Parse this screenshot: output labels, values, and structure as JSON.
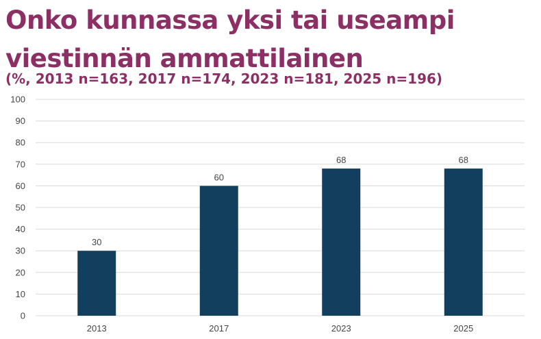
{
  "title": "Onko kunnassa yksi tai useampi viestinnän ammattilainen",
  "subtitle": "(%, 2013 n=163, 2017 n=174, 2023 n=181, 2025 n=196)",
  "colors": {
    "bar": "#133f5f",
    "title": "#8b2f65",
    "grid": "#d9d9d9"
  },
  "chart_data": {
    "type": "bar",
    "title": "Onko kunnassa yksi tai useampi viestinnän ammattilainen",
    "subtitle": "(%, 2013 n=163, 2017 n=174, 2023 n=181, 2025 n=196)",
    "categories": [
      "2013",
      "2017",
      "2023",
      "2025"
    ],
    "values": [
      30,
      60,
      68,
      68
    ],
    "data_labels": [
      "30",
      "60",
      "68",
      "68"
    ],
    "xlabel": "",
    "ylabel": "",
    "ylim": [
      0,
      100
    ],
    "yticks": [
      0,
      10,
      20,
      30,
      40,
      50,
      60,
      70,
      80,
      90,
      100
    ],
    "grid": true,
    "legend": "none"
  }
}
